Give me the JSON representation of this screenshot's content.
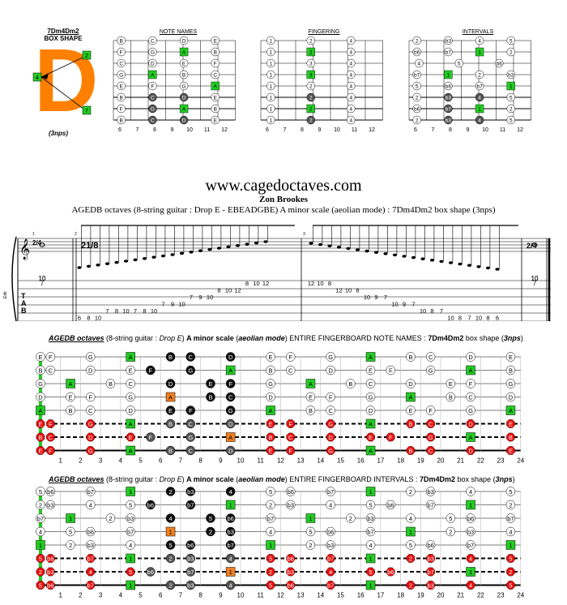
{
  "box_shape": {
    "name": "7Dm4Dm2",
    "label": "BOX SHAPE",
    "letter": "D",
    "markers": [
      "2",
      "4",
      "7"
    ],
    "nps": "(3nps)"
  },
  "mini_diagrams": [
    {
      "title": "NOTE NAMES",
      "cells": [
        [
          "B",
          "C",
          "D",
          "E"
        ],
        [
          "F",
          "G",
          "A",
          "B"
        ],
        [
          "C",
          "D",
          "E",
          "F"
        ],
        [
          "G",
          "A",
          "B",
          "C"
        ],
        [
          "E",
          "F",
          "G",
          "A"
        ],
        [
          "B",
          "C",
          "D",
          "E"
        ],
        [
          "F",
          "G",
          "A",
          "B"
        ],
        [
          "B",
          "C",
          "D",
          "E"
        ]
      ]
    },
    {
      "title": "FINGERING",
      "cells": [
        [
          "1",
          "2",
          "4"
        ],
        [
          "1",
          "2",
          "4"
        ],
        [
          "1",
          "3",
          "4"
        ],
        [
          "1",
          "3",
          "4"
        ],
        [
          "1",
          "2",
          "4"
        ],
        [
          "1",
          "2",
          "4"
        ],
        [
          "1",
          "2",
          "4"
        ],
        [
          "1",
          "2",
          "4"
        ]
      ]
    },
    {
      "title": "INTERVALS",
      "cells": [
        [
          "2",
          "b3",
          "4",
          "5"
        ],
        [
          "b6",
          "b7",
          "1",
          "2"
        ],
        [
          "4",
          "5",
          "b6"
        ],
        [
          "b7",
          "1",
          "2",
          "b3"
        ],
        [
          "5",
          "b6",
          "b7",
          "1"
        ],
        [
          "2",
          "b3",
          "4",
          "5"
        ],
        [
          "b6",
          "b7",
          "1",
          "2"
        ],
        [
          "2",
          "b3",
          "4",
          "5"
        ]
      ]
    }
  ],
  "mini_fret_numbers": [
    "6",
    "7",
    "8",
    "9",
    "10",
    "11",
    "12"
  ],
  "website": "www.cagedoctaves.com",
  "author": "Zon Brookes",
  "subtitle": "AGEDB octaves (8-string guitar : Drop E - EBEADGBE) A minor scale (aeolian mode) : 7Dm4Dm2 box shape (3nps)",
  "notation": {
    "time_sig_start": "2/4",
    "time_sig_mid": "21/8",
    "time_sig_end": "2/4",
    "measure_numbers": [
      "1",
      "2",
      "3"
    ],
    "tab_letters": [
      "T",
      "A",
      "B"
    ],
    "tab_side_label": "Edit",
    "bar1": [
      [
        "10",
        "7",
        "10"
      ]
    ],
    "ascending": [
      [
        "6",
        "8",
        "10",
        "7",
        "8",
        "10"
      ],
      [
        "7",
        "8",
        "10"
      ],
      [
        "7",
        "9",
        "10"
      ],
      [
        "7",
        "9",
        "10"
      ],
      [
        "8",
        "10",
        "12"
      ],
      [
        "8",
        "10",
        "12"
      ]
    ],
    "descending": [
      [
        "12",
        "10",
        "8"
      ],
      [
        "12",
        "10",
        "8"
      ],
      [
        "10",
        "9",
        "7"
      ],
      [
        "10",
        "9",
        "7"
      ],
      [
        "10",
        "8",
        "7",
        "10",
        "8",
        "7"
      ],
      [
        "10",
        "8",
        "6"
      ]
    ],
    "bar_end": [
      "10",
      "7",
      "10"
    ]
  },
  "fingerboard_notes": {
    "title_prefix": "AGEDB octaves",
    "title_mid1": " (8-string guitar : ",
    "title_tuning": "Drop E",
    "title_mid2": ") ",
    "title_scale": "A minor scale",
    "title_mode_open": " (",
    "title_mode": "aeolian mode",
    "title_mode_close": ") ENTIRE FINGERBOARD NOTE NAMES : ",
    "title_shape": "7Dm4Dm2",
    "title_suffix": " box shape (",
    "title_nps": "3nps",
    "title_end": ")",
    "strings": [
      [
        "E",
        "F",
        "",
        "G",
        "",
        "A",
        "",
        "B",
        "C",
        "",
        "D",
        "",
        "E",
        "F",
        "",
        "G",
        "",
        "A",
        "",
        "B",
        "C",
        "",
        "D",
        "",
        "E"
      ],
      [
        "B",
        "C",
        "",
        "D",
        "",
        "E",
        "F",
        "",
        "G",
        "",
        "A",
        "",
        "B",
        "C",
        "",
        "D",
        "",
        "E",
        "F",
        "",
        "G",
        "",
        "A",
        "",
        "B"
      ],
      [
        "G",
        "",
        "A",
        "",
        "B",
        "C",
        "",
        "D",
        "",
        "E",
        "F",
        "",
        "G",
        "",
        "A",
        "",
        "B",
        "C",
        "",
        "D",
        "",
        "E",
        "F",
        "",
        "G"
      ],
      [
        "D",
        "",
        "E",
        "F",
        "",
        "G",
        "",
        "A",
        "",
        "B",
        "C",
        "",
        "D",
        "",
        "E",
        "F",
        "",
        "G",
        "",
        "A",
        "",
        "B",
        "C",
        "",
        "D"
      ],
      [
        "A",
        "",
        "B",
        "C",
        "",
        "D",
        "",
        "E",
        "F",
        "",
        "G",
        "",
        "A",
        "",
        "B",
        "C",
        "",
        "D",
        "",
        "E",
        "F",
        "",
        "G",
        "",
        "A"
      ],
      [
        "E",
        "F",
        "",
        "G",
        "",
        "A",
        "",
        "B",
        "C",
        "",
        "D",
        "",
        "E",
        "F",
        "",
        "G",
        "",
        "A",
        "",
        "B",
        "C",
        "",
        "D",
        "",
        "E"
      ],
      [
        "B",
        "C",
        "",
        "D",
        "",
        "E",
        "F",
        "",
        "G",
        "",
        "A",
        "",
        "B",
        "C",
        "",
        "D",
        "",
        "E",
        "F",
        "",
        "G",
        "",
        "A",
        "",
        "B"
      ],
      [
        "E",
        "F",
        "",
        "G",
        "",
        "A",
        "",
        "B",
        "C",
        "",
        "D",
        "",
        "E",
        "F",
        "",
        "G",
        "",
        "A",
        "",
        "B",
        "C",
        "",
        "D",
        "",
        "E"
      ]
    ],
    "fret_numbers": [
      "1",
      "2",
      "3",
      "4",
      "5",
      "6",
      "7",
      "8",
      "9",
      "10",
      "11",
      "12",
      "13",
      "14",
      "15",
      "16",
      "17",
      "18",
      "19",
      "20",
      "21",
      "22",
      "23",
      "24"
    ]
  },
  "fingerboard_intervals": {
    "title_prefix": "AGEDB octaves",
    "title_mid1": " (8-string guitar : ",
    "title_tuning": "Drop E",
    "title_mid2": ") ",
    "title_scale": "A minor scale",
    "title_mode_open": " (",
    "title_mode": "aeolian mode",
    "title_mode_close": ") ENTIRE FINGERBOARD INTERVALS : ",
    "title_shape": "7Dm4Dm2",
    "title_suffix": " box shape (",
    "title_nps": "3nps",
    "title_end": ")",
    "strings": [
      [
        "5",
        "b6",
        "",
        "b7",
        "",
        "1",
        "",
        "2",
        "b3",
        "",
        "4",
        "",
        "5",
        "b6",
        "",
        "b7",
        "",
        "1",
        "",
        "2",
        "b3",
        "",
        "4",
        "",
        "5"
      ],
      [
        "2",
        "b3",
        "",
        "4",
        "",
        "5",
        "b6",
        "",
        "b7",
        "",
        "1",
        "",
        "2",
        "b3",
        "",
        "4",
        "",
        "5",
        "b6",
        "",
        "b7",
        "",
        "1",
        "",
        "2"
      ],
      [
        "b7",
        "",
        "1",
        "",
        "2",
        "b3",
        "",
        "4",
        "",
        "5",
        "b6",
        "",
        "b7",
        "",
        "1",
        "",
        "2",
        "b3",
        "",
        "4",
        "",
        "5",
        "b6",
        "",
        "b7"
      ],
      [
        "4",
        "",
        "5",
        "b6",
        "",
        "b7",
        "",
        "1",
        "",
        "2",
        "b3",
        "",
        "4",
        "",
        "5",
        "b6",
        "",
        "b7",
        "",
        "1",
        "",
        "2",
        "b3",
        "",
        "4"
      ],
      [
        "1",
        "",
        "2",
        "b3",
        "",
        "4",
        "",
        "5",
        "b6",
        "",
        "b7",
        "",
        "1",
        "",
        "2",
        "b3",
        "",
        "4",
        "",
        "5",
        "b6",
        "",
        "b7",
        "",
        "1"
      ],
      [
        "5",
        "b6",
        "",
        "b7",
        "",
        "1",
        "",
        "2",
        "b3",
        "",
        "4",
        "",
        "5",
        "b6",
        "",
        "b7",
        "",
        "1",
        "",
        "2",
        "b3",
        "",
        "4",
        "",
        "5"
      ],
      [
        "2",
        "b3",
        "",
        "4",
        "",
        "5",
        "b6",
        "",
        "b7",
        "",
        "1",
        "",
        "2",
        "b3",
        "",
        "4",
        "",
        "5",
        "b6",
        "",
        "b7",
        "",
        "1",
        "",
        "2"
      ],
      [
        "5",
        "b6",
        "",
        "b7",
        "",
        "1",
        "",
        "2",
        "b3",
        "",
        "4",
        "",
        "5",
        "b6",
        "",
        "b7",
        "",
        "1",
        "",
        "2",
        "b3",
        "",
        "4",
        "",
        "5"
      ]
    ],
    "fret_numbers": [
      "1",
      "2",
      "3",
      "4",
      "5",
      "6",
      "7",
      "8",
      "9",
      "10",
      "11",
      "12",
      "13",
      "14",
      "15",
      "16",
      "17",
      "18",
      "19",
      "20",
      "21",
      "22",
      "23",
      "24"
    ]
  },
  "colors": {
    "root_green": "#22cc22",
    "octave_orange": "#f08020",
    "red": "#e81010",
    "dark": "#111111",
    "grey": "#555555",
    "shape_orange": "#ff8000"
  }
}
